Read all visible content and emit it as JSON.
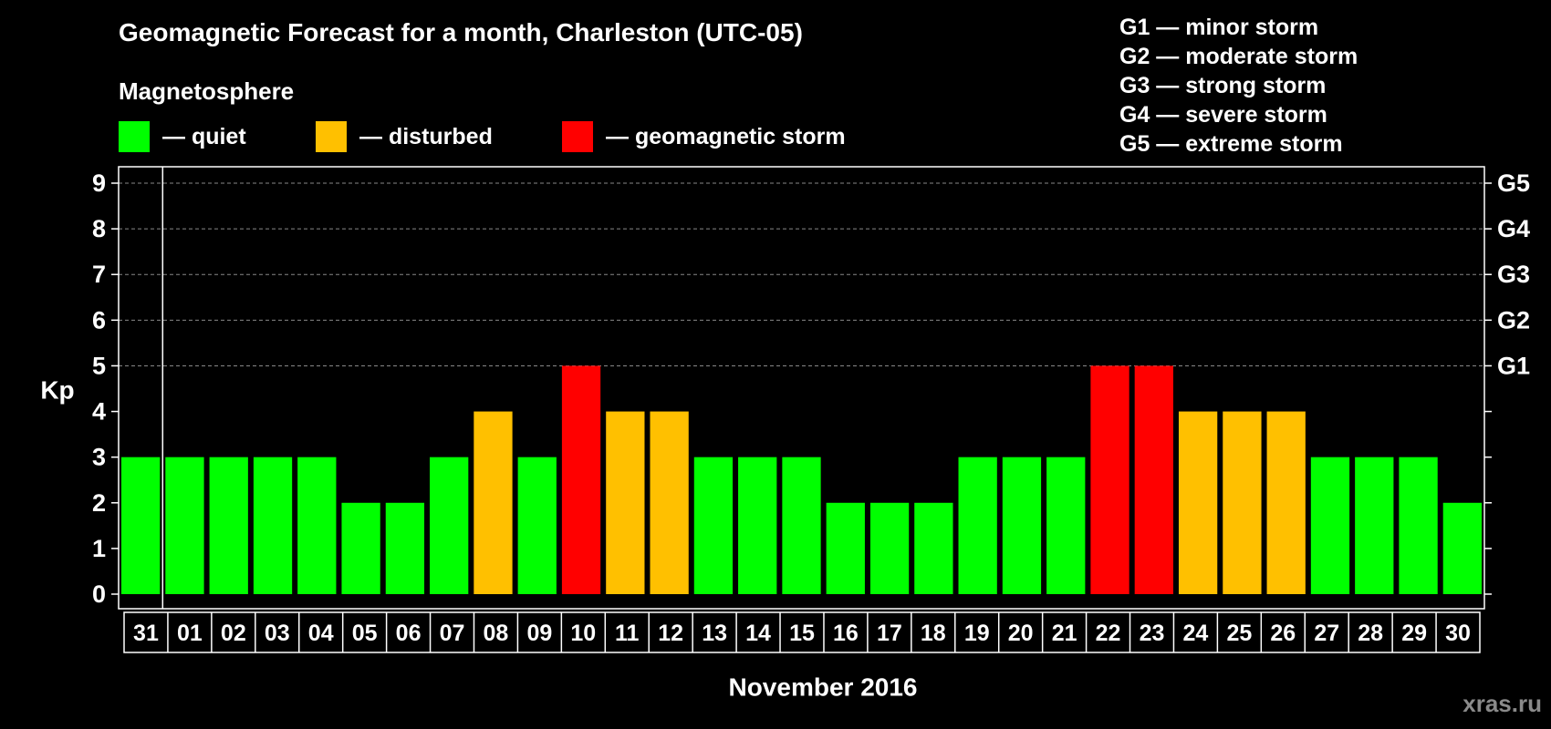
{
  "header": {
    "title": "Geomagnetic Forecast for a month, Charleston (UTC-05)",
    "subtitle": "Magnetosphere"
  },
  "legend": [
    {
      "label": "— quiet",
      "color": "#00ff00"
    },
    {
      "label": "— disturbed",
      "color": "#ffc000"
    },
    {
      "label": "— geomagnetic storm",
      "color": "#ff0000"
    }
  ],
  "storm_scale": [
    "G1 — minor storm",
    "G2 — moderate storm",
    "G3 — strong storm",
    "G4 — severe storm",
    "G5 — extreme storm"
  ],
  "watermark": "xras.ru",
  "colors": {
    "quiet": "#00ff00",
    "disturbed": "#ffc000",
    "storm": "#ff0000",
    "background": "#000000",
    "grid": "#888888",
    "axis": "#ffffff"
  },
  "chart_data": {
    "type": "bar",
    "title": "Geomagnetic Forecast for a month, Charleston (UTC-05)",
    "xlabel": "November 2016",
    "ylabel": "Kp",
    "ylim": [
      0,
      9
    ],
    "yticks": [
      "0",
      "1",
      "2",
      "3",
      "4",
      "5",
      "6",
      "7",
      "8",
      "9"
    ],
    "right_axis_labels": [
      {
        "y": 5,
        "label": "G1"
      },
      {
        "y": 6,
        "label": "G2"
      },
      {
        "y": 7,
        "label": "G3"
      },
      {
        "y": 8,
        "label": "G4"
      },
      {
        "y": 9,
        "label": "G5"
      }
    ],
    "grid": "dashed horizontal at 5-9",
    "categories": [
      "31",
      "01",
      "02",
      "03",
      "04",
      "05",
      "06",
      "07",
      "08",
      "09",
      "10",
      "11",
      "12",
      "13",
      "14",
      "15",
      "16",
      "17",
      "18",
      "19",
      "20",
      "21",
      "22",
      "23",
      "24",
      "25",
      "26",
      "27",
      "28",
      "29",
      "30"
    ],
    "values": [
      3,
      3,
      3,
      3,
      3,
      2,
      2,
      3,
      4,
      3,
      5,
      4,
      4,
      3,
      3,
      3,
      2,
      2,
      2,
      3,
      3,
      3,
      5,
      5,
      4,
      4,
      4,
      3,
      3,
      3,
      2
    ],
    "status": [
      "quiet",
      "quiet",
      "quiet",
      "quiet",
      "quiet",
      "quiet",
      "quiet",
      "quiet",
      "disturbed",
      "quiet",
      "storm",
      "disturbed",
      "disturbed",
      "quiet",
      "quiet",
      "quiet",
      "quiet",
      "quiet",
      "quiet",
      "quiet",
      "quiet",
      "quiet",
      "storm",
      "storm",
      "disturbed",
      "disturbed",
      "disturbed",
      "quiet",
      "quiet",
      "quiet",
      "quiet"
    ]
  }
}
